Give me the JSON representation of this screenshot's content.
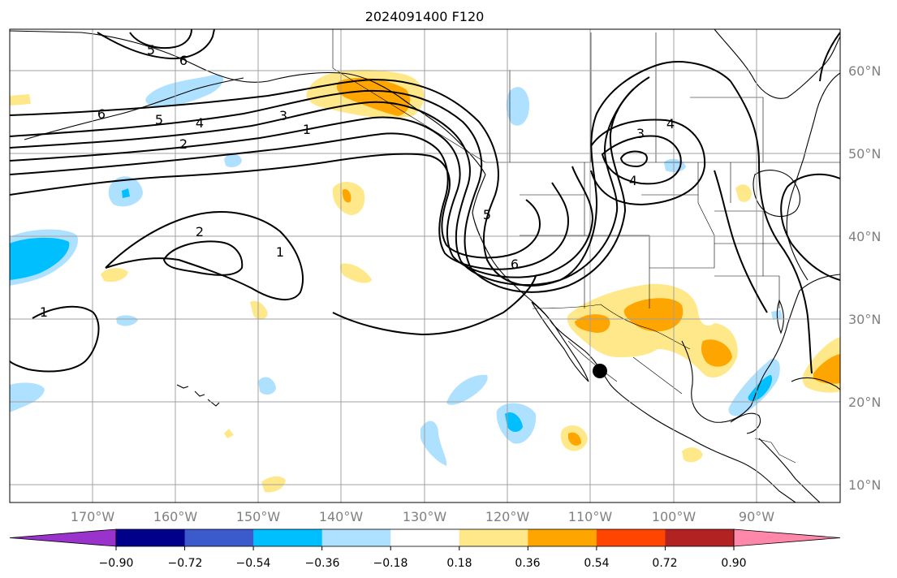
{
  "title": "2024091400 F120",
  "map": {
    "lon_ticks": [
      "170°W",
      "160°W",
      "150°W",
      "140°W",
      "130°W",
      "120°W",
      "110°W",
      "100°W",
      "90°W"
    ],
    "lat_ticks": [
      "60°N",
      "50°N",
      "40°N",
      "30°N",
      "20°N",
      "10°N"
    ],
    "contour_labels": [
      "5",
      "6",
      "6",
      "5",
      "4",
      "3",
      "2",
      "1",
      "2",
      "1",
      "1",
      "5",
      "6",
      "3",
      "4",
      "4"
    ],
    "marker": "black-dot"
  },
  "colorbar": {
    "ticks": [
      "−0.90",
      "−0.72",
      "−0.54",
      "−0.36",
      "−0.18",
      "0.18",
      "0.36",
      "0.54",
      "0.72",
      "0.90"
    ],
    "colors": [
      "#9933cc",
      "#00008b",
      "#3b5bcd",
      "#00bfff",
      "#aee0ff",
      "#ffffff",
      "#ffe88a",
      "#ffa500",
      "#ff4500",
      "#b22222",
      "#ff88aa"
    ]
  }
}
